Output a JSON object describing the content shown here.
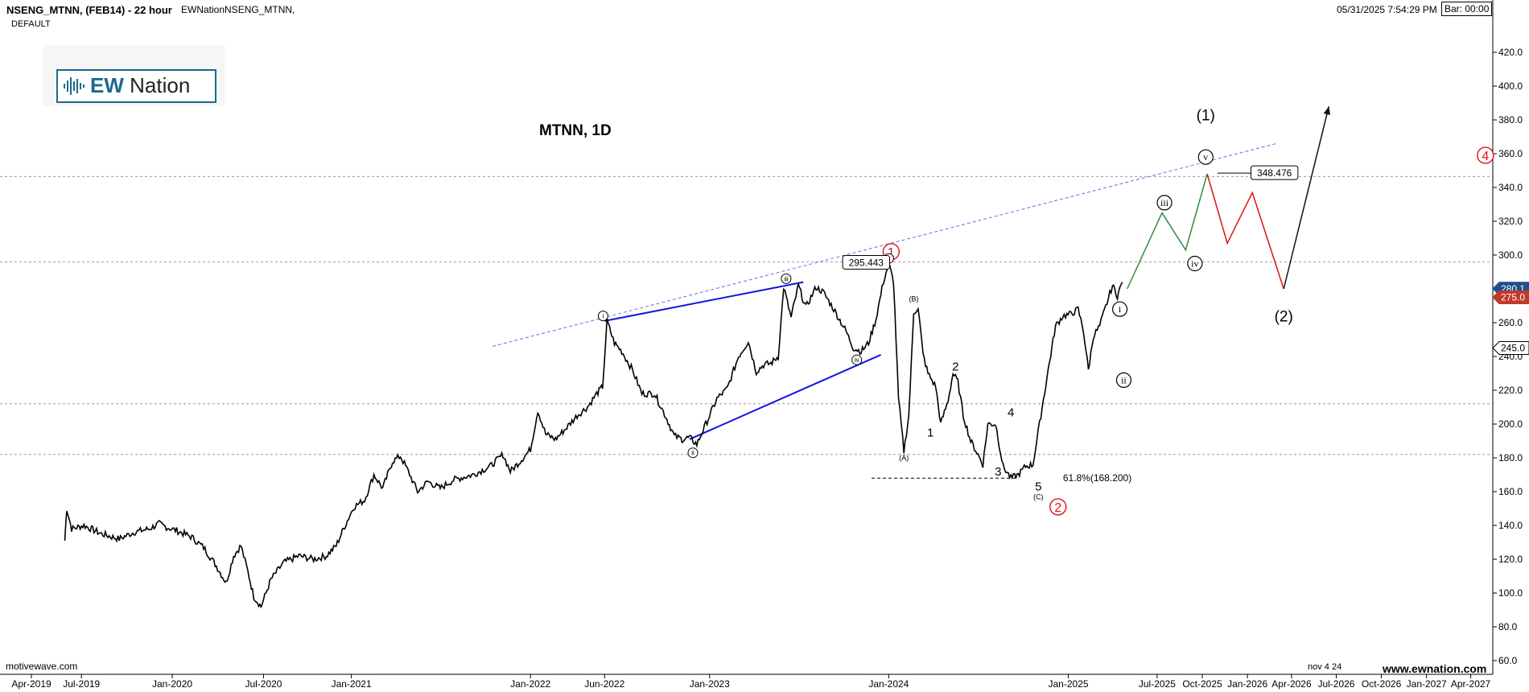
{
  "header": {
    "symbol": "NSENG_MTNN, (FEB14) - 22 hour",
    "subtitle": "DEFAULT",
    "study": "EWNationNSENG_MTNN,",
    "datetime": "05/31/2025 7:54:29 PM",
    "bar_timer": "Bar: 00:00"
  },
  "logo": {
    "ew": "EW",
    "nation": "Nation"
  },
  "footer": {
    "left": "motivewave.com",
    "date_code": "nov 4 24",
    "site": "www.ewnation.com"
  },
  "colors": {
    "price": "#000000",
    "wedge": "#1515e0",
    "trendline": "#6b6bdf",
    "up_projection": "#2e8b3e",
    "down_projection": "#e01010",
    "final_projection": "#111111",
    "red_label": "#e01010",
    "current_price_bg": "#1f4f8f",
    "current_price2_bg": "#c0392b"
  },
  "chart_data": {
    "type": "line",
    "title": "MTNN, 1D",
    "xlabel": "",
    "ylabel": "",
    "ylim": [
      50,
      430
    ],
    "xlim": [
      "2019-01-20",
      "2027-05-20"
    ],
    "grid": false,
    "x_ticks": [
      "Apr-2019",
      "Jul-2019",
      "Jan-2020",
      "Jul-2020",
      "Jan-2021",
      "Jan-2022",
      "Jun-2022",
      "Jan-2023",
      "Jan-2024",
      "Jan-2025",
      "Jul-2025",
      "Oct-2025",
      "Jan-2026",
      "Apr-2026",
      "Jul-2026",
      "Oct-2026",
      "Jan-2027",
      "Apr-2027"
    ],
    "x_tick_dates": [
      "2019-03-25",
      "2019-07-05",
      "2020-01-06",
      "2020-07-10",
      "2021-01-05",
      "2022-01-05",
      "2022-06-05",
      "2023-01-05",
      "2024-01-05",
      "2025-01-05",
      "2025-07-05",
      "2025-10-05",
      "2026-01-05",
      "2026-04-05",
      "2026-07-05",
      "2026-10-05",
      "2027-01-05",
      "2027-04-05"
    ],
    "y_ticks": [
      60,
      80,
      100,
      120,
      140,
      160,
      180,
      200,
      220,
      240,
      260,
      280,
      300,
      320,
      340,
      360,
      380,
      400,
      420
    ],
    "price_series": {
      "name": "",
      "points": [
        [
          "2019-06-01",
          131
        ],
        [
          "2019-06-05",
          150
        ],
        [
          "2019-06-15",
          138
        ],
        [
          "2019-07-10",
          140
        ],
        [
          "2019-08-15",
          135
        ],
        [
          "2019-09-20",
          132
        ],
        [
          "2019-10-20",
          136
        ],
        [
          "2019-11-20",
          138
        ],
        [
          "2019-12-10",
          141
        ],
        [
          "2019-12-25",
          139
        ],
        [
          "2020-01-15",
          137
        ],
        [
          "2020-02-15",
          133
        ],
        [
          "2020-03-10",
          127
        ],
        [
          "2020-04-05",
          116
        ],
        [
          "2020-04-25",
          106
        ],
        [
          "2020-05-10",
          122
        ],
        [
          "2020-05-25",
          128
        ],
        [
          "2020-06-08",
          113
        ],
        [
          "2020-06-20",
          98
        ],
        [
          "2020-07-05",
          92
        ],
        [
          "2020-07-25",
          108
        ],
        [
          "2020-08-20",
          118
        ],
        [
          "2020-09-20",
          122
        ],
        [
          "2020-10-20",
          120
        ],
        [
          "2020-11-15",
          122
        ],
        [
          "2020-12-05",
          128
        ],
        [
          "2020-12-20",
          138
        ],
        [
          "2021-01-10",
          151
        ],
        [
          "2021-02-01",
          155
        ],
        [
          "2021-02-20",
          170
        ],
        [
          "2021-03-10",
          162
        ],
        [
          "2021-03-30",
          178
        ],
        [
          "2021-04-15",
          181
        ],
        [
          "2021-05-01",
          172
        ],
        [
          "2021-05-20",
          160
        ],
        [
          "2021-06-10",
          166
        ],
        [
          "2021-07-05",
          162
        ],
        [
          "2021-08-01",
          167
        ],
        [
          "2021-09-10",
          170
        ],
        [
          "2021-10-15",
          175
        ],
        [
          "2021-11-10",
          182
        ],
        [
          "2021-11-25",
          172
        ],
        [
          "2021-12-15",
          178
        ],
        [
          "2022-01-05",
          185
        ],
        [
          "2022-01-20",
          208
        ],
        [
          "2022-02-05",
          194
        ],
        [
          "2022-02-25",
          191
        ],
        [
          "2022-03-20",
          198
        ],
        [
          "2022-04-10",
          205
        ],
        [
          "2022-05-01",
          210
        ],
        [
          "2022-05-20",
          218
        ],
        [
          "2022-06-01",
          222
        ],
        [
          "2022-06-10",
          261
        ],
        [
          "2022-06-25",
          248
        ],
        [
          "2022-07-10",
          243
        ],
        [
          "2022-08-01",
          232
        ],
        [
          "2022-08-20",
          218
        ],
        [
          "2022-09-15",
          218
        ],
        [
          "2022-10-10",
          203
        ],
        [
          "2022-10-25",
          193
        ],
        [
          "2022-11-10",
          191
        ],
        [
          "2022-11-25",
          192
        ],
        [
          "2022-12-10",
          188
        ],
        [
          "2023-01-05",
          205
        ],
        [
          "2023-01-20",
          215
        ],
        [
          "2023-02-10",
          221
        ],
        [
          "2023-03-05",
          240
        ],
        [
          "2023-03-25",
          249
        ],
        [
          "2023-04-10",
          231
        ],
        [
          "2023-04-25",
          235
        ],
        [
          "2023-05-10",
          236
        ],
        [
          "2023-05-25",
          240
        ],
        [
          "2023-06-05",
          281
        ],
        [
          "2023-06-20",
          263
        ],
        [
          "2023-07-05",
          282
        ],
        [
          "2023-07-20",
          269
        ],
        [
          "2023-08-10",
          281
        ],
        [
          "2023-08-25",
          278
        ],
        [
          "2023-09-15",
          268
        ],
        [
          "2023-10-10",
          255
        ],
        [
          "2023-10-25",
          245
        ],
        [
          "2023-11-10",
          243
        ],
        [
          "2023-11-25",
          248
        ],
        [
          "2023-12-10",
          262
        ],
        [
          "2023-12-25",
          284
        ],
        [
          "2024-01-05",
          295
        ],
        [
          "2024-01-15",
          284
        ],
        [
          "2024-01-25",
          215
        ],
        [
          "2024-02-05",
          184
        ],
        [
          "2024-02-15",
          205
        ],
        [
          "2024-02-25",
          266
        ],
        [
          "2024-03-05",
          269
        ],
        [
          "2024-03-15",
          241
        ],
        [
          "2024-03-25",
          230
        ],
        [
          "2024-04-10",
          222
        ],
        [
          "2024-04-20",
          200
        ],
        [
          "2024-05-05",
          214
        ],
        [
          "2024-05-15",
          230
        ],
        [
          "2024-05-25",
          225
        ],
        [
          "2024-06-05",
          205
        ],
        [
          "2024-06-20",
          190
        ],
        [
          "2024-07-05",
          182
        ],
        [
          "2024-07-15",
          176
        ],
        [
          "2024-07-25",
          200
        ],
        [
          "2024-08-10",
          200
        ],
        [
          "2024-08-25",
          175
        ],
        [
          "2024-09-10",
          168
        ],
        [
          "2024-09-25",
          170
        ],
        [
          "2024-10-10",
          175
        ],
        [
          "2024-10-25",
          176
        ],
        [
          "2024-11-10",
          205
        ],
        [
          "2024-11-25",
          232
        ],
        [
          "2024-12-10",
          258
        ],
        [
          "2024-12-25",
          264
        ],
        [
          "2025-01-10",
          265
        ],
        [
          "2025-01-25",
          268
        ],
        [
          "2025-02-05",
          255
        ],
        [
          "2025-02-15",
          232
        ],
        [
          "2025-02-25",
          252
        ],
        [
          "2025-03-10",
          258
        ],
        [
          "2025-03-25",
          272
        ],
        [
          "2025-04-05",
          282
        ],
        [
          "2025-04-15",
          276
        ],
        [
          "2025-04-25",
          284
        ]
      ]
    },
    "projection_up": [
      [
        "2025-05-05",
        280
      ],
      [
        "2025-07-15",
        325
      ],
      [
        "2025-09-01",
        303
      ],
      [
        "2025-10-15",
        348
      ]
    ],
    "projection_down": [
      [
        "2025-10-15",
        348
      ],
      [
        "2025-11-25",
        307
      ],
      [
        "2026-01-15",
        337
      ],
      [
        "2026-03-20",
        280
      ]
    ],
    "projection_final": [
      [
        "2026-03-20",
        280
      ],
      [
        "2026-06-20",
        388
      ]
    ],
    "wedge_lines": [
      [
        [
          "2022-06-05",
          261
        ],
        [
          "2023-07-15",
          284
        ]
      ],
      [
        [
          "2022-11-25",
          191
        ],
        [
          "2023-12-20",
          241
        ]
      ]
    ],
    "trendline": [
      [
        "2021-10-20",
        246
      ],
      [
        "2026-03-05",
        366
      ]
    ],
    "support_line": [
      [
        "2023-12-01",
        168
      ],
      [
        "2024-09-25",
        168
      ]
    ],
    "hlines": [
      346.5,
      296,
      212,
      182
    ],
    "price_tags": [
      {
        "label": "280.1",
        "value": 280.1
      },
      {
        "label": "275.0",
        "value": 275.0
      },
      {
        "label": "245.0",
        "value": 245.0
      }
    ],
    "annotations": [
      {
        "text": "(1)",
        "x": "2025-10-12",
        "y": 383,
        "style": "plain-large"
      },
      {
        "text": "(2)",
        "x": "2026-03-20",
        "y": 264,
        "style": "plain-large"
      },
      {
        "text": "4",
        "x": "2027-05-05",
        "y": 359,
        "style": "red-circle"
      },
      {
        "text": "1",
        "x": "2024-01-10",
        "y": 302,
        "style": "red-circle"
      },
      {
        "text": "2",
        "x": "2024-12-15",
        "y": 151,
        "style": "red-circle"
      },
      {
        "text": "v",
        "x": "2025-10-12",
        "y": 358,
        "style": "circle-roman"
      },
      {
        "text": "iii",
        "x": "2025-07-20",
        "y": 331,
        "style": "circle-roman"
      },
      {
        "text": "iv",
        "x": "2025-09-20",
        "y": 295,
        "style": "circle-roman"
      },
      {
        "text": "i",
        "x": "2025-04-20",
        "y": 268,
        "style": "circle-roman"
      },
      {
        "text": "ii",
        "x": "2025-04-28",
        "y": 226,
        "style": "circle-roman"
      },
      {
        "text": "i",
        "x": "2022-06-02",
        "y": 264,
        "style": "circle-small"
      },
      {
        "text": "ii",
        "x": "2022-12-02",
        "y": 183,
        "style": "circle-small"
      },
      {
        "text": "iii",
        "x": "2023-06-10",
        "y": 286,
        "style": "circle-small"
      },
      {
        "text": "iv",
        "x": "2023-11-01",
        "y": 238,
        "style": "circle-small"
      },
      {
        "text": "v",
        "x": "2024-01-05",
        "y": 298,
        "style": "circle-small"
      },
      {
        "text": "(A)",
        "x": "2024-02-05",
        "y": 180,
        "style": "tiny"
      },
      {
        "text": "(B)",
        "x": "2024-02-25",
        "y": 274,
        "style": "tiny"
      },
      {
        "text": "(C)",
        "x": "2024-11-05",
        "y": 157,
        "style": "tiny"
      },
      {
        "text": "1",
        "x": "2024-03-30",
        "y": 195,
        "style": "plain"
      },
      {
        "text": "2",
        "x": "2024-05-20",
        "y": 234,
        "style": "plain"
      },
      {
        "text": "3",
        "x": "2024-08-15",
        "y": 172,
        "style": "plain"
      },
      {
        "text": "4",
        "x": "2024-09-10",
        "y": 207,
        "style": "plain"
      },
      {
        "text": "5",
        "x": "2024-11-05",
        "y": 163,
        "style": "plain"
      },
      {
        "text": "61.8%(168.200)",
        "x": "2024-12-25",
        "y": 168,
        "style": "text-left"
      },
      {
        "text": "295.443",
        "x": "2023-11-20",
        "y": 295.5,
        "style": "boxed"
      },
      {
        "text": "348.476",
        "x": "2026-03-01",
        "y": 348.5,
        "style": "boxed"
      }
    ]
  }
}
